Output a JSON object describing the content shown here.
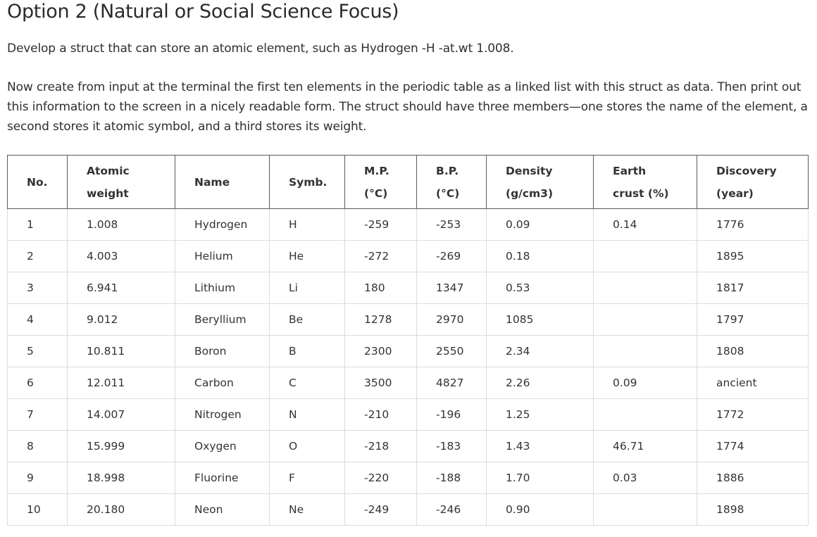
{
  "heading": "Option 2 (Natural or Social Science Focus)",
  "paragraph1": "Develop a struct that can store an atomic element, such as Hydrogen -H -at.wt 1.008.",
  "paragraph2": "Now create from input at the terminal the first ten elements in the periodic table as a linked list with this struct as data. Then print out this information to the screen in a nicely readable form. The struct should have three members—one stores the name of the element, a second stores it atomic symbol, and a third stores its weight.",
  "table": {
    "headers": [
      {
        "line1": "No.",
        "line2": ""
      },
      {
        "line1": "Atomic",
        "line2": "weight"
      },
      {
        "line1": "Name",
        "line2": ""
      },
      {
        "line1": "Symb.",
        "line2": ""
      },
      {
        "line1": "M.P.",
        "line2": "(°C)"
      },
      {
        "line1": "B.P.",
        "line2": "(°C)"
      },
      {
        "line1": "Density",
        "line2": "(g/cm3)"
      },
      {
        "line1": "Earth",
        "line2": "crust (%)"
      },
      {
        "line1": "Discovery",
        "line2": "(year)"
      }
    ],
    "rows": [
      [
        "1",
        "1.008",
        "Hydrogen",
        "H",
        "-259",
        "-253",
        "0.09",
        "0.14",
        "1776"
      ],
      [
        "2",
        "4.003",
        "Helium",
        "He",
        "-272",
        "-269",
        "0.18",
        "",
        "1895"
      ],
      [
        "3",
        "6.941",
        "Lithium",
        "Li",
        "180",
        "1347",
        "0.53",
        "",
        "1817"
      ],
      [
        "4",
        "9.012",
        "Beryllium",
        "Be",
        "1278",
        "2970",
        "1085",
        "",
        "1797"
      ],
      [
        "5",
        "10.811",
        "Boron",
        "B",
        "2300",
        "2550",
        "2.34",
        "",
        "1808"
      ],
      [
        "6",
        "12.011",
        "Carbon",
        "C",
        "3500",
        "4827",
        "2.26",
        "0.09",
        "ancient"
      ],
      [
        "7",
        "14.007",
        "Nitrogen",
        "N",
        "-210",
        "-196",
        "1.25",
        "",
        "1772"
      ],
      [
        "8",
        "15.999",
        "Oxygen",
        "O",
        "-218",
        "-183",
        "1.43",
        "46.71",
        "1774"
      ],
      [
        "9",
        "18.998",
        "Fluorine",
        "F",
        "-220",
        "-188",
        "1.70",
        "0.03",
        "1886"
      ],
      [
        "10",
        "20.180",
        "Neon",
        "Ne",
        "-249",
        "-246",
        "0.90",
        "",
        "1898"
      ]
    ]
  }
}
